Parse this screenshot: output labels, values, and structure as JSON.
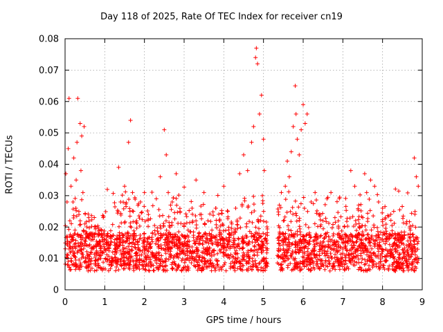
{
  "chart_data": {
    "type": "scatter",
    "title": "Day 118 of 2025, Rate Of TEC Index for receiver cn19",
    "xlabel": "GPS time / hours",
    "ylabel": "ROTI / TECUs",
    "xlim": [
      0,
      9
    ],
    "ylim": [
      0,
      0.08
    ],
    "x_ticks": [
      0,
      1,
      2,
      3,
      4,
      5,
      6,
      7,
      8,
      9
    ],
    "y_ticks": [
      0,
      0.01,
      0.02,
      0.03,
      0.04,
      0.05,
      0.06,
      0.07,
      0.08
    ],
    "y_tick_labels": [
      "0",
      "0.01",
      "0.02",
      "0.03",
      "0.04",
      "0.05",
      "0.06",
      "0.07",
      "0.08"
    ],
    "grid": true,
    "marker": "+",
    "marker_color": "#ff0000",
    "data_gap_hours": [
      5.1,
      5.35
    ],
    "series": [
      {
        "name": "ROTI",
        "x": [
          0.02,
          0.05,
          0.08,
          0.1,
          0.12,
          0.15,
          0.18,
          0.2,
          0.22,
          0.25,
          0.28,
          0.3,
          0.32,
          0.35,
          0.38,
          0.4,
          0.42,
          0.45,
          0.48,
          0.5,
          0.55,
          0.6,
          0.65,
          0.7,
          0.8,
          0.9,
          1.0,
          1.1,
          1.2,
          1.3,
          1.35,
          1.4,
          1.5,
          1.6,
          1.65,
          1.7,
          1.72,
          1.75,
          1.8,
          1.9,
          2.0,
          2.1,
          2.2,
          2.3,
          2.4,
          2.5,
          2.55,
          2.6,
          2.7,
          2.8,
          2.9,
          3.0,
          3.1,
          3.2,
          3.3,
          3.4,
          3.5,
          3.6,
          3.7,
          3.8,
          3.9,
          4.0,
          4.1,
          4.2,
          4.3,
          4.4,
          4.5,
          4.6,
          4.7,
          4.75,
          4.8,
          4.82,
          4.85,
          4.9,
          4.95,
          5.0,
          5.02,
          5.4,
          5.45,
          5.5,
          5.55,
          5.6,
          5.65,
          5.7,
          5.75,
          5.8,
          5.82,
          5.85,
          5.9,
          5.95,
          6.0,
          6.05,
          6.1,
          6.2,
          6.3,
          6.4,
          6.5,
          6.6,
          6.7,
          6.8,
          6.9,
          7.0,
          7.2,
          7.3,
          7.4,
          7.5,
          7.55,
          7.6,
          7.7,
          7.8,
          7.9,
          8.0,
          8.1,
          8.3,
          8.4,
          8.5,
          8.6,
          8.7,
          8.8,
          8.85,
          8.9
        ],
        "y": [
          0.037,
          0.028,
          0.045,
          0.061,
          0.022,
          0.033,
          0.016,
          0.028,
          0.042,
          0.019,
          0.035,
          0.047,
          0.061,
          0.024,
          0.053,
          0.038,
          0.049,
          0.031,
          0.052,
          0.021,
          0.018,
          0.014,
          0.012,
          0.013,
          0.011,
          0.012,
          0.013,
          0.014,
          0.012,
          0.016,
          0.039,
          0.028,
          0.033,
          0.047,
          0.054,
          0.031,
          0.025,
          0.018,
          0.022,
          0.028,
          0.031,
          0.024,
          0.018,
          0.029,
          0.036,
          0.051,
          0.043,
          0.031,
          0.028,
          0.037,
          0.025,
          0.021,
          0.019,
          0.026,
          0.035,
          0.024,
          0.031,
          0.022,
          0.019,
          0.026,
          0.022,
          0.033,
          0.025,
          0.021,
          0.026,
          0.037,
          0.043,
          0.038,
          0.047,
          0.052,
          0.074,
          0.077,
          0.072,
          0.056,
          0.062,
          0.048,
          0.038,
          0.027,
          0.031,
          0.022,
          0.033,
          0.041,
          0.036,
          0.044,
          0.052,
          0.065,
          0.056,
          0.048,
          0.043,
          0.051,
          0.059,
          0.053,
          0.056,
          0.028,
          0.031,
          0.024,
          0.022,
          0.029,
          0.031,
          0.023,
          0.018,
          0.013,
          0.038,
          0.033,
          0.027,
          0.023,
          0.037,
          0.031,
          0.035,
          0.033,
          0.028,
          0.026,
          0.018,
          0.015,
          0.016,
          0.017,
          0.021,
          0.019,
          0.042,
          0.036,
          0.033
        ]
      }
    ]
  }
}
